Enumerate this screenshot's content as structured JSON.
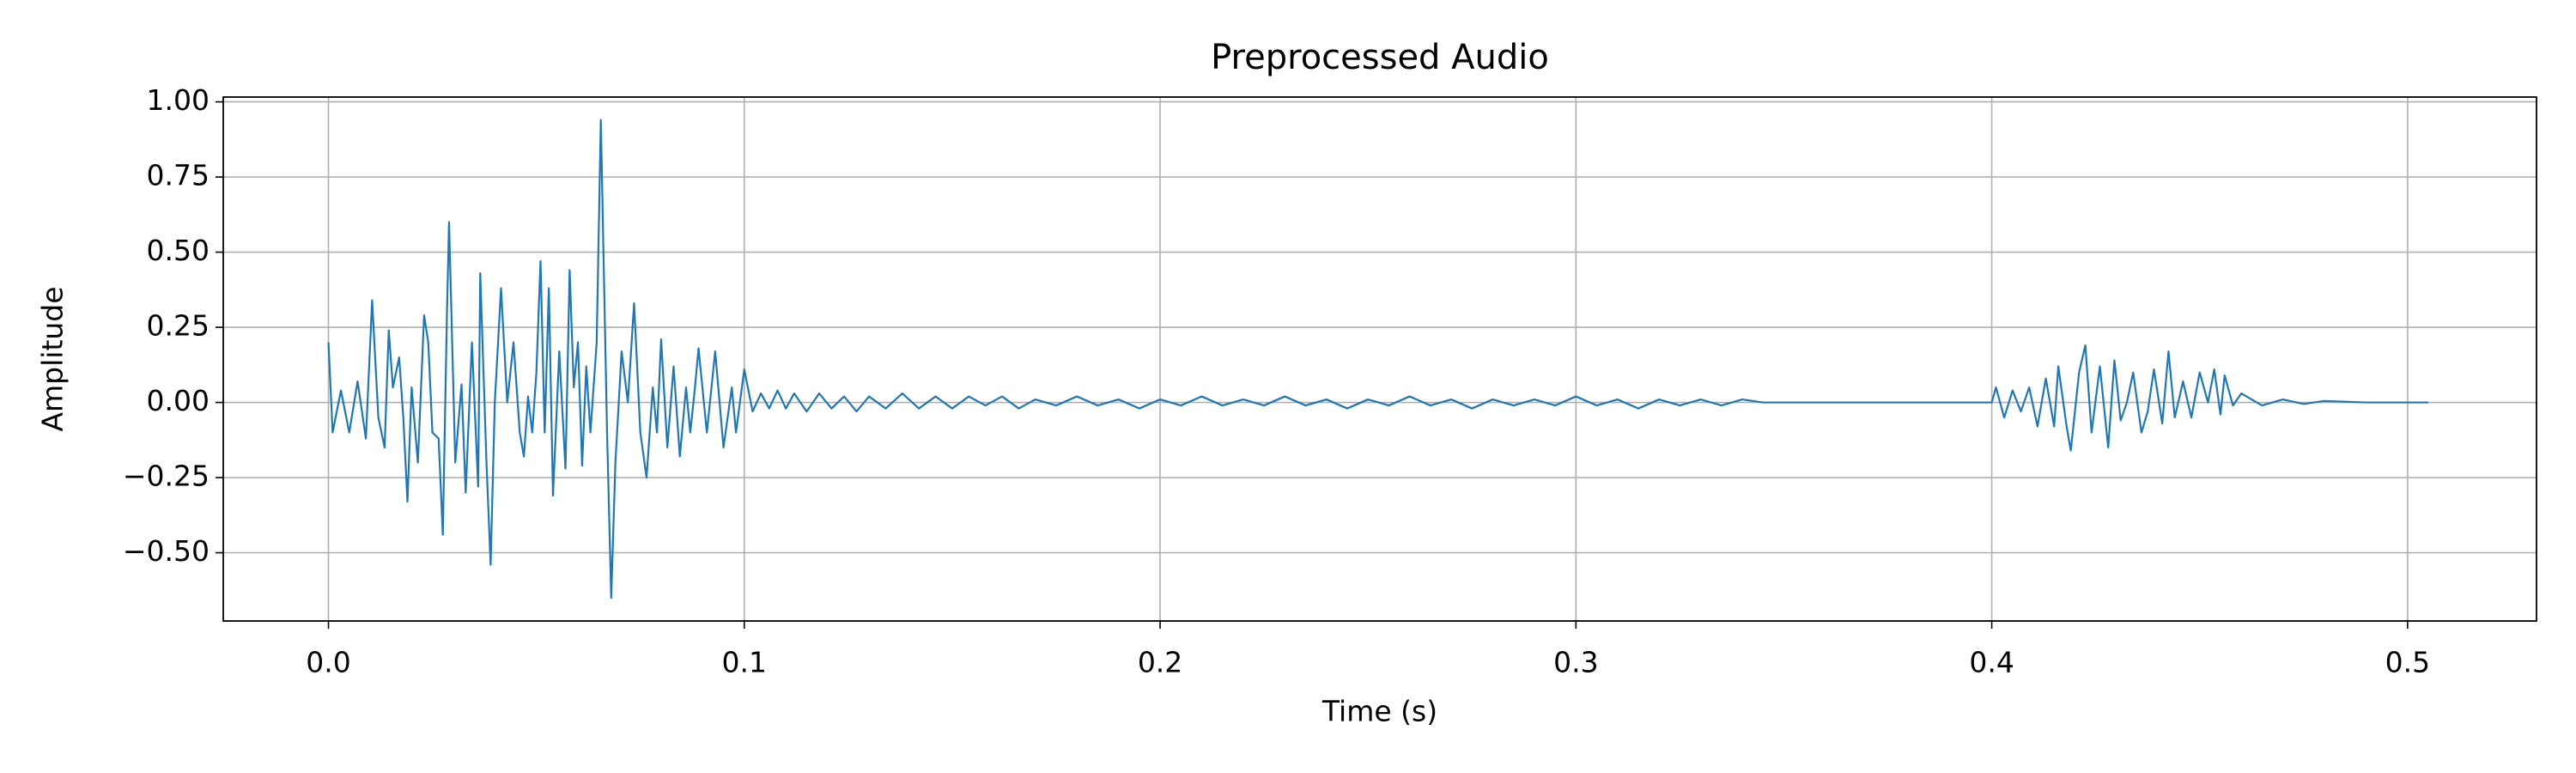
{
  "chart_data": {
    "type": "line",
    "title": "Preprocessed Audio",
    "x_label": "Time (s)",
    "y_label": "Amplitude",
    "x": [
      0.0,
      0.001,
      0.003,
      0.005,
      0.007,
      0.009,
      0.0105,
      0.012,
      0.0135,
      0.0145,
      0.0155,
      0.017,
      0.018,
      0.019,
      0.02,
      0.0215,
      0.023,
      0.024,
      0.025,
      0.0265,
      0.0275,
      0.0285,
      0.029,
      0.0305,
      0.032,
      0.033,
      0.0345,
      0.036,
      0.0365,
      0.038,
      0.039,
      0.04,
      0.0415,
      0.043,
      0.0445,
      0.046,
      0.047,
      0.048,
      0.049,
      0.05,
      0.051,
      0.052,
      0.053,
      0.054,
      0.0555,
      0.057,
      0.058,
      0.059,
      0.06,
      0.061,
      0.062,
      0.063,
      0.0645,
      0.0655,
      0.067,
      0.068,
      0.069,
      0.0705,
      0.072,
      0.0735,
      0.075,
      0.0765,
      0.078,
      0.079,
      0.08,
      0.0815,
      0.083,
      0.0845,
      0.086,
      0.087,
      0.088,
      0.089,
      0.091,
      0.093,
      0.095,
      0.097,
      0.098,
      0.1,
      0.102,
      0.104,
      0.106,
      0.108,
      0.11,
      0.112,
      0.115,
      0.118,
      0.121,
      0.124,
      0.127,
      0.13,
      0.134,
      0.138,
      0.142,
      0.146,
      0.15,
      0.154,
      0.158,
      0.162,
      0.166,
      0.17,
      0.175,
      0.18,
      0.185,
      0.19,
      0.195,
      0.2,
      0.205,
      0.21,
      0.215,
      0.22,
      0.225,
      0.23,
      0.235,
      0.24,
      0.245,
      0.25,
      0.255,
      0.26,
      0.265,
      0.27,
      0.275,
      0.28,
      0.285,
      0.29,
      0.295,
      0.3,
      0.305,
      0.31,
      0.315,
      0.32,
      0.325,
      0.33,
      0.335,
      0.34,
      0.345,
      0.37,
      0.395,
      0.4,
      0.401,
      0.403,
      0.405,
      0.407,
      0.409,
      0.411,
      0.413,
      0.415,
      0.416,
      0.418,
      0.419,
      0.421,
      0.4225,
      0.424,
      0.426,
      0.428,
      0.4295,
      0.431,
      0.4325,
      0.434,
      0.436,
      0.4375,
      0.439,
      0.441,
      0.4425,
      0.444,
      0.446,
      0.448,
      0.45,
      0.452,
      0.4535,
      0.455,
      0.456,
      0.458,
      0.46,
      0.465,
      0.47,
      0.475,
      0.48,
      0.49,
      0.505
    ],
    "series": [
      {
        "color": "#1f77b4",
        "values": [
          0.2,
          -0.1,
          0.04,
          -0.1,
          0.07,
          -0.12,
          0.34,
          -0.05,
          -0.15,
          0.24,
          0.05,
          0.15,
          -0.05,
          -0.33,
          0.05,
          -0.2,
          0.29,
          0.2,
          -0.1,
          -0.12,
          -0.44,
          0.3,
          0.6,
          -0.2,
          0.06,
          -0.3,
          0.2,
          -0.28,
          0.43,
          -0.2,
          -0.54,
          0.0,
          0.38,
          0.0,
          0.2,
          -0.1,
          -0.18,
          0.02,
          -0.1,
          0.1,
          0.47,
          -0.1,
          0.38,
          -0.31,
          0.17,
          -0.22,
          0.44,
          0.05,
          0.2,
          -0.21,
          0.12,
          -0.1,
          0.2,
          0.94,
          -0.1,
          -0.65,
          -0.2,
          0.17,
          0.0,
          0.33,
          -0.1,
          -0.25,
          0.05,
          -0.1,
          0.21,
          -0.15,
          0.12,
          -0.18,
          0.05,
          -0.1,
          0.03,
          0.18,
          -0.1,
          0.17,
          -0.15,
          0.05,
          -0.1,
          0.11,
          -0.03,
          0.03,
          -0.02,
          0.04,
          -0.02,
          0.03,
          -0.03,
          0.03,
          -0.02,
          0.02,
          -0.03,
          0.02,
          -0.02,
          0.03,
          -0.02,
          0.02,
          -0.02,
          0.02,
          -0.01,
          0.02,
          -0.02,
          0.01,
          -0.01,
          0.02,
          -0.01,
          0.01,
          -0.02,
          0.01,
          -0.01,
          0.02,
          -0.01,
          0.01,
          -0.01,
          0.02,
          -0.01,
          0.01,
          -0.02,
          0.01,
          -0.01,
          0.02,
          -0.01,
          0.01,
          -0.02,
          0.01,
          -0.01,
          0.01,
          -0.01,
          0.02,
          -0.01,
          0.01,
          -0.02,
          0.01,
          -0.01,
          0.01,
          -0.01,
          0.01,
          0.0,
          0.0,
          0.0,
          0.0,
          0.05,
          -0.05,
          0.04,
          -0.03,
          0.05,
          -0.08,
          0.08,
          -0.08,
          0.12,
          -0.08,
          -0.16,
          0.1,
          0.19,
          -0.1,
          0.12,
          -0.15,
          0.14,
          -0.06,
          0.0,
          0.1,
          -0.1,
          -0.03,
          0.11,
          -0.07,
          0.17,
          -0.05,
          0.07,
          -0.05,
          0.1,
          0.0,
          0.11,
          -0.04,
          0.09,
          -0.01,
          0.03,
          -0.01,
          0.01,
          -0.005,
          0.005,
          0.0,
          0.0
        ]
      }
    ],
    "xlim": [
      -0.0253,
      0.531
    ],
    "ylim": [
      -0.727,
      1.016
    ],
    "xticks": [
      {
        "value": 0,
        "label": "0.0"
      },
      0.1,
      0.2,
      0.3,
      0.4,
      0.5
    ],
    "yticks": [
      {
        "value": -0.5,
        "label": "−0.50"
      },
      {
        "value": -0.25,
        "label": "−0.25"
      },
      {
        "value": 0,
        "label": "0.00"
      },
      0.25,
      {
        "value": 0.5,
        "label": "0.50"
      },
      0.75,
      {
        "value": 1,
        "label": "1.00"
      }
    ],
    "grid": true
  }
}
